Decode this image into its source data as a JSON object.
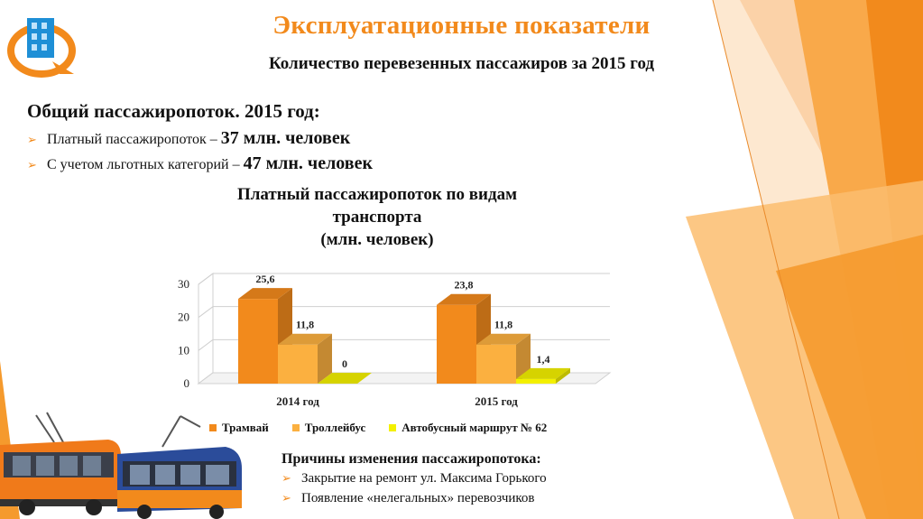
{
  "title": "Эксплуатационные показатели",
  "subtitle": "Количество перевезенных пассажиров за 2015 год",
  "summary": {
    "heading": "Общий пассажиропоток. 2015 год:",
    "items": [
      {
        "text": "Платный пассажиропоток – ",
        "value": "37 млн. человек"
      },
      {
        "text": "С учетом льготных категорий – ",
        "value": "47 млн. человек"
      }
    ]
  },
  "chart_title": "Платный пассажиропоток по видам\nтранспорта\n(млн. человек)",
  "chart_data": {
    "type": "bar",
    "title": "Платный пассажиропоток по видам транспорта (млн. человек)",
    "categories": [
      "2014 год",
      "2015 год"
    ],
    "series": [
      {
        "name": "Трамвай",
        "values": [
          25.6,
          23.8
        ],
        "labels": [
          "25,6",
          "23,8"
        ],
        "color": "#f28a1c"
      },
      {
        "name": "Троллейбус",
        "values": [
          11.8,
          11.8
        ],
        "labels": [
          "11,8",
          "11,8"
        ],
        "color": "#fbb040"
      },
      {
        "name": "Автобусный маршрут № 62",
        "values": [
          0,
          1.4
        ],
        "labels": [
          "0",
          "1,4"
        ],
        "color": "#f3f000"
      }
    ],
    "yticks": [
      0,
      10,
      20,
      30
    ],
    "ylim": [
      0,
      30
    ],
    "grid": true,
    "legend_position": "bottom"
  },
  "reasons": {
    "heading": "Причины изменения пассажиропотока:",
    "items": [
      "Закрытие на ремонт ул. Максима Горького",
      "Появление «нелегальных» перевозчиков"
    ]
  },
  "colors": {
    "accent": "#f28a1c",
    "accent_light": "#fbb040",
    "bus": "#f3f000"
  }
}
